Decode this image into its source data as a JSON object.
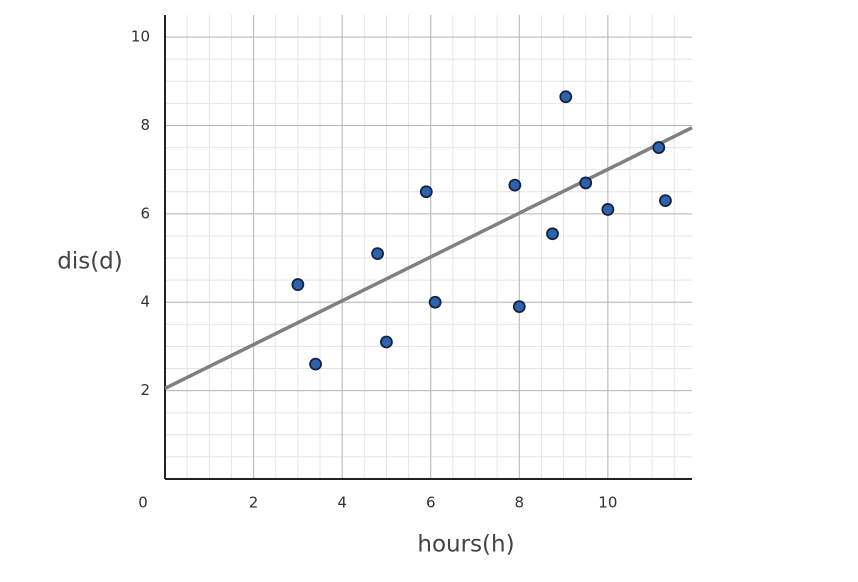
{
  "chart_data": {
    "type": "scatter",
    "x_label": "hours(h)",
    "y_label": "dis(d)",
    "x": [
      3.0,
      3.4,
      4.8,
      5.0,
      5.9,
      6.1,
      7.9,
      8.0,
      8.75,
      9.05,
      9.5,
      10.0,
      11.15,
      11.3
    ],
    "values": [
      4.4,
      2.6,
      5.1,
      3.1,
      6.5,
      4.0,
      6.65,
      3.9,
      5.55,
      8.65,
      6.7,
      6.1,
      7.5,
      6.3
    ],
    "color": "#2e62ad",
    "trendline": {
      "x": [
        0,
        11.9
      ],
      "values": [
        2.05,
        7.95
      ],
      "color": "#808080"
    },
    "xlim": [
      0,
      11.9
    ],
    "ylim": [
      0,
      10.5
    ],
    "xticks": [
      0,
      2,
      4,
      6,
      8,
      10
    ],
    "yticks": [
      2,
      4,
      6,
      8,
      10
    ],
    "grid": true,
    "minor_grid_step": 0.5
  }
}
